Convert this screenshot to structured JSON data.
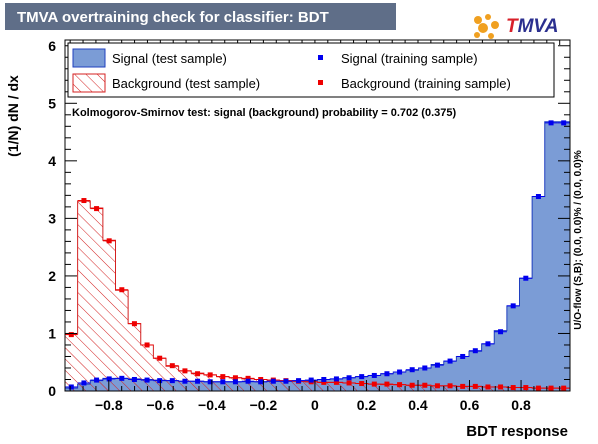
{
  "title": "TMVA overtraining check for classifier: BDT",
  "logo": {
    "prefix": "T",
    "rest": "MVA"
  },
  "chart_data": {
    "type": "histogram",
    "title": "TMVA overtraining check for classifier: BDT",
    "xlabel": "BDT response",
    "ylabel": "(1/N) dN  /  dx",
    "xlim": [
      -0.97,
      0.99
    ],
    "ylim": [
      0,
      6.1
    ],
    "x_ticks": [
      "−0.8",
      "−0.6",
      "−0.4",
      "−0.2",
      "0",
      "0.2",
      "0.4",
      "0.6",
      "0.8"
    ],
    "x_tick_values": [
      -0.8,
      -0.6,
      -0.4,
      -0.2,
      0,
      0.2,
      0.4,
      0.6,
      0.8
    ],
    "y_ticks": [
      "0",
      "1",
      "2",
      "3",
      "4",
      "5",
      "6"
    ],
    "y_tick_values": [
      0,
      1,
      2,
      3,
      4,
      5,
      6
    ],
    "n_bins": 40,
    "annotation": "Kolmogorov-Smirnov test: signal (background) probability = 0.702 (0.375)",
    "side_label": "U/O-flow (S,B): (0.0, 0.0)% / (0.0, 0.0)%",
    "legend": {
      "signal_test": "Signal (test sample)",
      "background_test": "Background (test sample)",
      "signal_train": "Signal (training sample)",
      "background_train": "Background (training sample)"
    },
    "colors": {
      "signal_fill": "#7b9cd6",
      "signal_line": "#1f3fbf",
      "background_line": "#d42020",
      "signal_marker": "#0000ee",
      "background_marker": "#ee0000",
      "title_bg": "#5f6e88"
    },
    "series": [
      {
        "name": "Signal (test sample)",
        "values": [
          0.05,
          0.12,
          0.18,
          0.22,
          0.22,
          0.21,
          0.2,
          0.19,
          0.18,
          0.17,
          0.17,
          0.16,
          0.16,
          0.16,
          0.16,
          0.16,
          0.17,
          0.17,
          0.18,
          0.18,
          0.2,
          0.21,
          0.23,
          0.25,
          0.27,
          0.3,
          0.33,
          0.36,
          0.4,
          0.46,
          0.52,
          0.6,
          0.69,
          0.82,
          1.05,
          1.48,
          1.96,
          3.38,
          4.68,
          4.68
        ]
      },
      {
        "name": "Background (test sample)",
        "values": [
          0.99,
          3.3,
          3.18,
          2.62,
          1.75,
          1.17,
          0.8,
          0.57,
          0.43,
          0.35,
          0.31,
          0.28,
          0.25,
          0.23,
          0.21,
          0.2,
          0.19,
          0.18,
          0.17,
          0.16,
          0.15,
          0.15,
          0.14,
          0.13,
          0.12,
          0.11,
          0.11,
          0.1,
          0.1,
          0.09,
          0.09,
          0.08,
          0.08,
          0.07,
          0.07,
          0.06,
          0.06,
          0.05,
          0.05,
          0.05
        ]
      },
      {
        "name": "Signal (training sample)",
        "values": [
          0.07,
          0.14,
          0.19,
          0.21,
          0.22,
          0.2,
          0.19,
          0.18,
          0.18,
          0.17,
          0.17,
          0.16,
          0.16,
          0.16,
          0.17,
          0.16,
          0.17,
          0.17,
          0.18,
          0.19,
          0.2,
          0.21,
          0.23,
          0.25,
          0.27,
          0.3,
          0.33,
          0.37,
          0.4,
          0.45,
          0.52,
          0.6,
          0.7,
          0.82,
          1.03,
          1.48,
          1.96,
          3.38,
          4.66,
          4.66
        ]
      },
      {
        "name": "Background (training sample)",
        "values": [
          0.98,
          3.31,
          3.17,
          2.61,
          1.76,
          1.17,
          0.8,
          0.57,
          0.44,
          0.35,
          0.3,
          0.28,
          0.25,
          0.23,
          0.22,
          0.2,
          0.19,
          0.18,
          0.17,
          0.16,
          0.15,
          0.15,
          0.14,
          0.13,
          0.12,
          0.12,
          0.11,
          0.1,
          0.1,
          0.09,
          0.09,
          0.08,
          0.08,
          0.07,
          0.07,
          0.06,
          0.06,
          0.05,
          0.05,
          0.05
        ]
      }
    ]
  }
}
